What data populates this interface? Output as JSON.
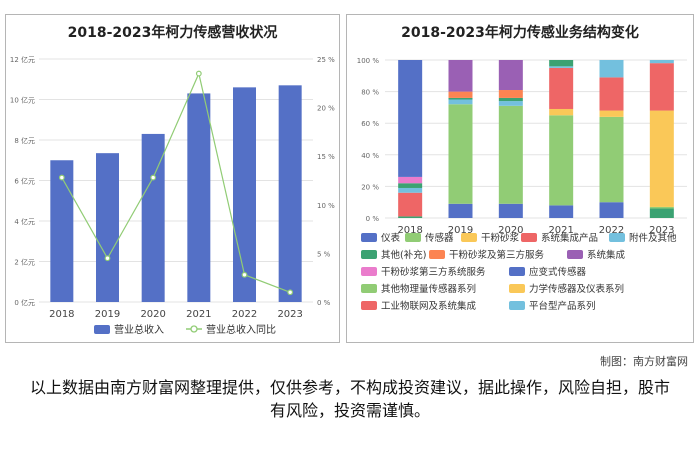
{
  "watermark": "南方财富网 southmoney.com",
  "credit": "制图：南方财富网",
  "disclaimer": "以上数据由南方财富网整理提供，仅供参考，不构成投资建议，据此操作，风险自担，股市有风险，投资需谨慎。",
  "colors": {
    "bar_left": "#5470c6",
    "line_left": "#91cc75"
  },
  "chart_data": [
    {
      "type": "bar",
      "title": "2018-2023年柯力传感营收状况",
      "categories": [
        "2018",
        "2019",
        "2020",
        "2021",
        "2022",
        "2023"
      ],
      "series": [
        {
          "name": "营业总收入",
          "axis": "left",
          "values": [
            7.0,
            7.35,
            8.3,
            10.3,
            10.6,
            10.7
          ]
        },
        {
          "name": "营业总收入同比",
          "axis": "right",
          "chart_type": "line",
          "values": [
            12.8,
            4.5,
            12.8,
            23.5,
            2.8,
            1.0
          ]
        }
      ],
      "left_axis": {
        "ticks": [
          "0 亿元",
          "2 亿元",
          "4 亿元",
          "6 亿元",
          "8 亿元",
          "10 亿元",
          "12 亿元"
        ],
        "ylim": [
          0,
          12
        ]
      },
      "right_axis": {
        "ticks": [
          "0 %",
          "5 %",
          "10 %",
          "15 %",
          "20 %",
          "25 %"
        ],
        "ylim": [
          0,
          25
        ]
      },
      "grid": true,
      "legend": "bottom"
    },
    {
      "type": "bar",
      "stacked": true,
      "title": "2018-2023年柯力传感业务结构变化",
      "categories": [
        "2018",
        "2019",
        "2020",
        "2021",
        "2022",
        "2023"
      ],
      "y_axis": {
        "ticks": [
          "0 %",
          "20 %",
          "40 %",
          "60 %",
          "80 %",
          "100 %"
        ],
        "ylim": [
          0,
          100
        ]
      },
      "legend_items": [
        {
          "name": "仪表",
          "color": "#5470c6"
        },
        {
          "name": "传感器",
          "color": "#91cc75"
        },
        {
          "name": "干粉砂浆",
          "color": "#fac858"
        },
        {
          "name": "系统集成产品",
          "color": "#ee6666"
        },
        {
          "name": "附件及其他",
          "color": "#73c0de"
        },
        {
          "name": "其他(补充)",
          "color": "#3ba272"
        },
        {
          "name": "干粉砂浆及第三方服务",
          "color": "#fc8452"
        },
        {
          "name": "系统集成",
          "color": "#9a60b4"
        },
        {
          "name": "干粉砂浆第三方系统服务",
          "color": "#ea7ccc"
        },
        {
          "name": "应变式传感器",
          "color": "#5470c6"
        },
        {
          "name": "其他物理量传感器系列",
          "color": "#91cc75"
        },
        {
          "name": "力学传感器及仪表系列",
          "color": "#fac858"
        },
        {
          "name": "工业物联网及系统集成",
          "color": "#ee6666"
        },
        {
          "name": "平台型产品系列",
          "color": "#73c0de"
        }
      ],
      "stacks": [
        [
          {
            "series": "其他(补充)",
            "value": 1
          },
          {
            "series": "系统集成产品",
            "value": 15
          },
          {
            "series": "附件及其他",
            "value": 3
          },
          {
            "series": "其他(补充)",
            "value": 3
          },
          {
            "series": "干粉砂浆第三方系统服务",
            "value": 4
          },
          {
            "series": "应变式传感器",
            "value": 74
          }
        ],
        [
          {
            "series": "应变式传感器",
            "value": 9
          },
          {
            "series": "其他物理量传感器系列",
            "value": 63
          },
          {
            "series": "附件及其他",
            "value": 3
          },
          {
            "series": "其他(补充)",
            "value": 1
          },
          {
            "series": "干粉砂浆及第三方服务",
            "value": 4
          },
          {
            "series": "系统集成",
            "value": 20
          }
        ],
        [
          {
            "series": "应变式传感器",
            "value": 9
          },
          {
            "series": "其他物理量传感器系列",
            "value": 62
          },
          {
            "series": "附件及其他",
            "value": 3
          },
          {
            "series": "其他(补充)",
            "value": 2
          },
          {
            "series": "干粉砂浆及第三方服务",
            "value": 5
          },
          {
            "series": "系统集成",
            "value": 19
          }
        ],
        [
          {
            "series": "应变式传感器",
            "value": 8
          },
          {
            "series": "其他物理量传感器系列",
            "value": 57
          },
          {
            "series": "力学传感器及仪表系列",
            "value": 4
          },
          {
            "series": "工业物联网及系统集成",
            "value": 26
          },
          {
            "series": "附件及其他",
            "value": 1
          },
          {
            "series": "其他(补充)",
            "value": 4
          }
        ],
        [
          {
            "series": "应变式传感器",
            "value": 10
          },
          {
            "series": "其他物理量传感器系列",
            "value": 54
          },
          {
            "series": "力学传感器及仪表系列",
            "value": 4
          },
          {
            "series": "工业物联网及系统集成",
            "value": 21
          },
          {
            "series": "平台型产品系列",
            "value": 11
          }
        ],
        [
          {
            "series": "其他(补充)",
            "value": 6
          },
          {
            "series": "其他物理量传感器系列",
            "value": 1
          },
          {
            "series": "力学传感器及仪表系列",
            "value": 61
          },
          {
            "series": "工业物联网及系统集成",
            "value": 30
          },
          {
            "series": "平台型产品系列",
            "value": 2
          }
        ]
      ],
      "legend": "bottom"
    }
  ]
}
